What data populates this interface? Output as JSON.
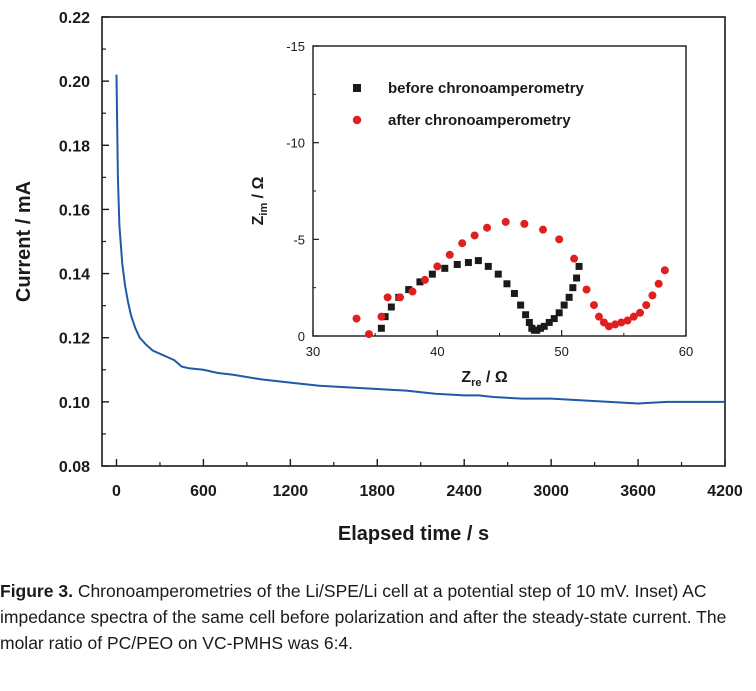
{
  "figure_label": "Figure 3.",
  "caption_text": "Chronoamperometries of the Li/SPE/Li cell at a potential step of 10 mV. Inset) AC impedance spectra of the same cell before polarization and after the steady-state current. The molar ratio of PC/PEO on VC-PMHS was 6:4.",
  "chart_data": [
    {
      "type": "line",
      "xlabel": "Elapsed time / s",
      "ylabel": "Current / mA",
      "xlim": [
        -100,
        4200
      ],
      "ylim": [
        0.08,
        0.22
      ],
      "xticks": [
        "0",
        "600",
        "1200",
        "1800",
        "2400",
        "3000",
        "3600",
        "4200"
      ],
      "xtick_values": [
        0,
        600,
        1200,
        1800,
        2400,
        3000,
        3600,
        4200
      ],
      "yticks": [
        "0.08",
        "0.10",
        "0.12",
        "0.14",
        "0.16",
        "0.18",
        "0.20",
        "0.22"
      ],
      "ytick_values": [
        0.08,
        0.1,
        0.12,
        0.14,
        0.16,
        0.18,
        0.2,
        0.22
      ],
      "color": "#1f5aa8",
      "series": [
        {
          "x": [
            0,
            10,
            20,
            40,
            60,
            80,
            100,
            130,
            160,
            200,
            250,
            300,
            350,
            400,
            450,
            500,
            600,
            700,
            800,
            1000,
            1200,
            1400,
            1600,
            1800,
            2000,
            2200,
            2400,
            2500,
            2600,
            2800,
            3000,
            3200,
            3400,
            3600,
            3800,
            4000,
            4200
          ],
          "y": [
            0.202,
            0.17,
            0.155,
            0.143,
            0.136,
            0.131,
            0.127,
            0.123,
            0.12,
            0.118,
            0.116,
            0.115,
            0.114,
            0.113,
            0.111,
            0.1105,
            0.11,
            0.109,
            0.1085,
            0.107,
            0.106,
            0.105,
            0.1045,
            0.104,
            0.1035,
            0.1025,
            0.102,
            0.102,
            0.1015,
            0.101,
            0.101,
            0.1005,
            0.1,
            0.0995,
            0.1,
            0.1,
            0.1
          ]
        }
      ]
    },
    {
      "type": "scatter",
      "xlabel": "Z_re / Ω",
      "ylabel": "Z_im / Ω",
      "xlabel_main": "Z",
      "xlabel_sub": "re",
      "xlabel_unit": " / Ω",
      "ylabel_main": "Z",
      "ylabel_sub": "im",
      "ylabel_unit": " / Ω",
      "xlim": [
        30,
        60
      ],
      "ylim": [
        0,
        -15
      ],
      "xticks": [
        "30",
        "40",
        "50",
        "60"
      ],
      "xtick_values": [
        30,
        40,
        50,
        60
      ],
      "yticks": [
        "0",
        "-5",
        "-10",
        "-15"
      ],
      "ytick_values": [
        0,
        -5,
        -10,
        -15
      ],
      "legend_position": "top-right",
      "series": [
        {
          "name": "before chronoamperometry",
          "marker": "square",
          "color": "#1a1a1a",
          "x": [
            35.5,
            35.8,
            36.3,
            36.9,
            37.7,
            38.6,
            39.6,
            40.6,
            41.6,
            42.5,
            43.3,
            44.1,
            44.9,
            45.6,
            46.2,
            46.7,
            47.1,
            47.4,
            47.6,
            47.8,
            48.0,
            48.3,
            48.6,
            49.0,
            49.4,
            49.8,
            50.2,
            50.6,
            50.9,
            51.2,
            51.4
          ],
          "y": [
            -0.4,
            -1.0,
            -1.5,
            -2.0,
            -2.4,
            -2.8,
            -3.2,
            -3.5,
            -3.7,
            -3.8,
            -3.9,
            -3.6,
            -3.2,
            -2.7,
            -2.2,
            -1.6,
            -1.1,
            -0.7,
            -0.4,
            -0.3,
            -0.3,
            -0.4,
            -0.5,
            -0.7,
            -0.9,
            -1.2,
            -1.6,
            -2.0,
            -2.5,
            -3.0,
            -3.6
          ]
        },
        {
          "name": "after chronoamperometry",
          "marker": "circle",
          "color": "#e02020",
          "x": [
            33.5,
            34.5,
            35.5,
            36.0,
            37.0,
            38.0,
            39.0,
            40.0,
            41.0,
            42.0,
            43.0,
            44.0,
            45.5,
            47.0,
            48.5,
            49.8,
            51.0,
            52.0,
            52.6,
            53.0,
            53.4,
            53.8,
            54.3,
            54.8,
            55.3,
            55.8,
            56.3,
            56.8,
            57.3,
            57.8,
            58.3
          ],
          "y": [
            -0.9,
            -0.1,
            -1.0,
            -2.0,
            -2.0,
            -2.3,
            -2.9,
            -3.6,
            -4.2,
            -4.8,
            -5.2,
            -5.6,
            -5.9,
            -5.8,
            -5.5,
            -5.0,
            -4.0,
            -2.4,
            -1.6,
            -1.0,
            -0.7,
            -0.5,
            -0.6,
            -0.7,
            -0.8,
            -1.0,
            -1.2,
            -1.6,
            -2.1,
            -2.7,
            -3.4
          ]
        }
      ]
    }
  ]
}
